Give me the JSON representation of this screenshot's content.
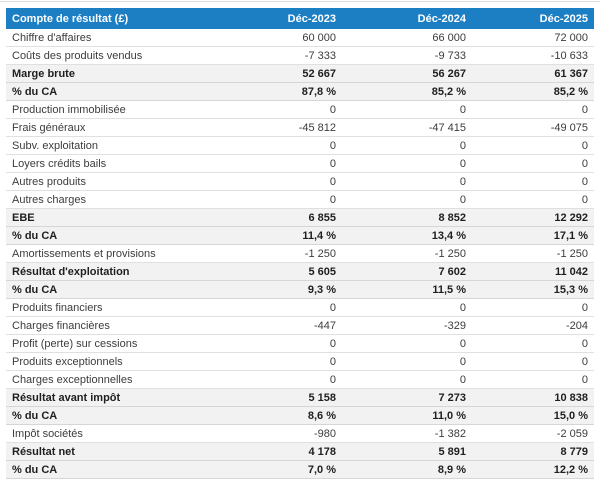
{
  "colors": {
    "header_bg": "#1c7fc4",
    "header_text": "#ffffff",
    "emphasis_row_bg": "#f2f2f2",
    "row_border": "#e0e0e0"
  },
  "table": {
    "header": {
      "label": "Compte de résultat (£)",
      "columns": [
        "Déc-2023",
        "Déc-2024",
        "Déc-2025"
      ]
    },
    "rows": [
      {
        "label": "Chiffre d'affaires",
        "values": [
          "60 000",
          "66 000",
          "72 000"
        ],
        "emphasis": false
      },
      {
        "label": "Coûts des produits vendus",
        "values": [
          "-7 333",
          "-9 733",
          "-10 633"
        ],
        "emphasis": false
      },
      {
        "label": "Marge brute",
        "values": [
          "52 667",
          "56 267",
          "61 367"
        ],
        "emphasis": true
      },
      {
        "label": "% du CA",
        "values": [
          "87,8 %",
          "85,2 %",
          "85,2 %"
        ],
        "emphasis": true
      },
      {
        "label": "Production immobilisée",
        "values": [
          "0",
          "0",
          "0"
        ],
        "emphasis": false
      },
      {
        "label": "Frais généraux",
        "values": [
          "-45 812",
          "-47 415",
          "-49 075"
        ],
        "emphasis": false
      },
      {
        "label": "Subv. exploitation",
        "values": [
          "0",
          "0",
          "0"
        ],
        "emphasis": false
      },
      {
        "label": "Loyers crédits bails",
        "values": [
          "0",
          "0",
          "0"
        ],
        "emphasis": false
      },
      {
        "label": "Autres produits",
        "values": [
          "0",
          "0",
          "0"
        ],
        "emphasis": false
      },
      {
        "label": "Autres charges",
        "values": [
          "0",
          "0",
          "0"
        ],
        "emphasis": false
      },
      {
        "label": "EBE",
        "values": [
          "6 855",
          "8 852",
          "12 292"
        ],
        "emphasis": true
      },
      {
        "label": "% du CA",
        "values": [
          "11,4 %",
          "13,4 %",
          "17,1 %"
        ],
        "emphasis": true
      },
      {
        "label": "Amortissements et provisions",
        "values": [
          "-1 250",
          "-1 250",
          "-1 250"
        ],
        "emphasis": false
      },
      {
        "label": "Résultat d'exploitation",
        "values": [
          "5 605",
          "7 602",
          "11 042"
        ],
        "emphasis": true
      },
      {
        "label": "% du CA",
        "values": [
          "9,3 %",
          "11,5 %",
          "15,3 %"
        ],
        "emphasis": true
      },
      {
        "label": "Produits financiers",
        "values": [
          "0",
          "0",
          "0"
        ],
        "emphasis": false
      },
      {
        "label": "Charges financières",
        "values": [
          "-447",
          "-329",
          "-204"
        ],
        "emphasis": false
      },
      {
        "label": "Profit (perte) sur cessions",
        "values": [
          "0",
          "0",
          "0"
        ],
        "emphasis": false
      },
      {
        "label": "Produits exceptionnels",
        "values": [
          "0",
          "0",
          "0"
        ],
        "emphasis": false
      },
      {
        "label": "Charges exceptionnelles",
        "values": [
          "0",
          "0",
          "0"
        ],
        "emphasis": false
      },
      {
        "label": "Résultat avant impôt",
        "values": [
          "5 158",
          "7 273",
          "10 838"
        ],
        "emphasis": true
      },
      {
        "label": "% du CA",
        "values": [
          "8,6 %",
          "11,0 %",
          "15,0 %"
        ],
        "emphasis": true
      },
      {
        "label": "Impôt sociétés",
        "values": [
          "-980",
          "-1 382",
          "-2 059"
        ],
        "emphasis": false
      },
      {
        "label": "Résultat net",
        "values": [
          "4 178",
          "5 891",
          "8 779"
        ],
        "emphasis": true
      },
      {
        "label": "% du CA",
        "values": [
          "7,0 %",
          "8,9 %",
          "12,2 %"
        ],
        "emphasis": true
      }
    ]
  }
}
